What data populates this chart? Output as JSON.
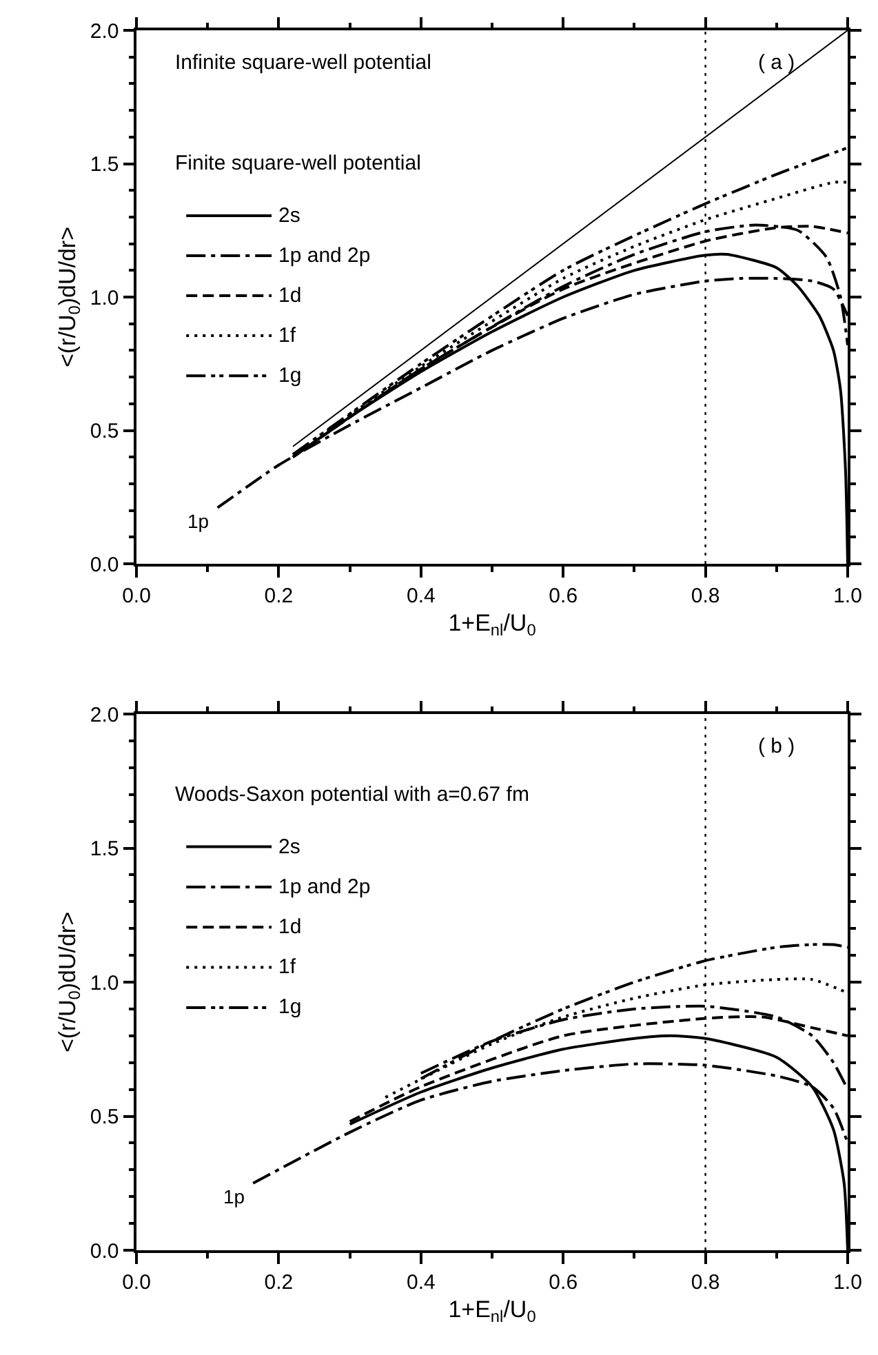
{
  "chart_data": [
    {
      "type": "line",
      "xlabel": "1+E$_{nl}$/U$_{0}$",
      "ylabel": "<(r/U$_{0}$)dU/dr>",
      "legend_title": "Finite square-well potential",
      "legend": "top left",
      "grid": false,
      "marker": "none",
      "xlim": [
        0,
        1
      ],
      "ylim": [
        0,
        2
      ],
      "xticks": [
        {
          "value": 0,
          "label": "0.0"
        },
        {
          "value": 0.2,
          "label": "0.2"
        },
        {
          "value": 0.4,
          "label": "0.4"
        },
        {
          "value": 0.6,
          "label": "0.6"
        },
        {
          "value": 0.8,
          "label": "0.8"
        },
        {
          "value": 1,
          "label": "1.0"
        }
      ],
      "yticks": [
        {
          "value": 0,
          "label": "0.0"
        },
        {
          "value": 0.5,
          "label": "0.5"
        },
        {
          "value": 1,
          "label": "1.0"
        },
        {
          "value": 1.5,
          "label": "1.5"
        },
        {
          "value": 2,
          "label": "2.0"
        }
      ],
      "ref_lines": [
        {
          "axis": "x",
          "value": 0.8,
          "line_style": "dotted",
          "color": "#000000"
        }
      ],
      "annotations": [
        "Infinite square-well potential",
        "( a )",
        {
          "text": "1p",
          "x": 0.114,
          "y": 0.21
        }
      ],
      "series": [
        {
          "color": "#000000",
          "line_style": "solid",
          "x": [
            0.22,
            1.0
          ],
          "values": [
            0.44,
            2.0
          ]
        },
        {
          "name": "2s",
          "color": "#000000",
          "line_style": "solid",
          "x": [
            0.22,
            0.3,
            0.4,
            0.5,
            0.6,
            0.7,
            0.8,
            0.83,
            0.9,
            0.93,
            0.96,
            0.98,
            0.99,
            0.997,
            1.0
          ],
          "values": [
            0.4,
            0.55,
            0.72,
            0.87,
            1.0,
            1.1,
            1.157,
            1.16,
            1.11,
            1.04,
            0.93,
            0.8,
            0.65,
            0.35,
            0.0
          ]
        },
        {
          "name": "1p and 2p",
          "color": "#000000",
          "line_style": "dashdot",
          "x": [
            0.114,
            0.2,
            0.3,
            0.4,
            0.5,
            0.6,
            0.7,
            0.8,
            0.85,
            0.9,
            0.95,
            0.98,
            1.0
          ],
          "values": [
            0.21,
            0.37,
            0.52,
            0.66,
            0.8,
            0.92,
            1.01,
            1.06,
            1.07,
            1.07,
            1.06,
            1.03,
            0.93
          ]
        },
        {
          "color": "#000000",
          "line_style": "dashdot",
          "x": [
            0.22,
            0.3,
            0.4,
            0.6,
            0.7,
            0.8,
            0.87,
            0.93,
            0.97,
            0.99,
            1.0
          ],
          "values": [
            0.4,
            0.55,
            0.73,
            1.04,
            1.16,
            1.245,
            1.27,
            1.25,
            1.15,
            1.0,
            0.82
          ]
        },
        {
          "name": "1d",
          "color": "#000000",
          "line_style": "dashed",
          "x": [
            0.22,
            0.4,
            0.6,
            0.8,
            0.9,
            0.95,
            1.0
          ],
          "values": [
            0.4,
            0.73,
            1.03,
            1.21,
            1.26,
            1.265,
            1.24
          ]
        },
        {
          "name": "1f",
          "color": "#000000",
          "line_style": "dotted",
          "x": [
            0.22,
            0.4,
            0.6,
            0.7,
            0.8,
            0.9,
            0.98,
            1.0
          ],
          "values": [
            0.41,
            0.74,
            1.07,
            1.19,
            1.29,
            1.37,
            1.43,
            1.43
          ]
        },
        {
          "name": "1g",
          "color": "#000000",
          "line_style": "dashdotdot",
          "x": [
            0.22,
            0.4,
            0.6,
            0.7,
            0.8,
            0.9,
            1.0
          ],
          "values": [
            0.41,
            0.75,
            1.1,
            1.23,
            1.35,
            1.46,
            1.56
          ]
        }
      ]
    },
    {
      "type": "line",
      "xlabel": "1+E$_{nl}$/U$_{0}$",
      "ylabel": "<(r/U$_{0}$)dU/dr>",
      "legend_title": "Woods-Saxon potential with a=0.67 fm",
      "legend": "top left",
      "grid": false,
      "marker": "none",
      "xlim": [
        0,
        1
      ],
      "ylim": [
        0,
        2
      ],
      "xticks": [
        {
          "value": 0,
          "label": "0.0"
        },
        {
          "value": 0.2,
          "label": "0.2"
        },
        {
          "value": 0.4,
          "label": "0.4"
        },
        {
          "value": 0.6,
          "label": "0.6"
        },
        {
          "value": 0.8,
          "label": "0.8"
        },
        {
          "value": 1,
          "label": "1.0"
        }
      ],
      "yticks": [
        {
          "value": 0,
          "label": "0.0"
        },
        {
          "value": 0.5,
          "label": "0.5"
        },
        {
          "value": 1,
          "label": "1.0"
        },
        {
          "value": 1.5,
          "label": "1.5"
        },
        {
          "value": 2,
          "label": "2.0"
        }
      ],
      "ref_lines": [
        {
          "axis": "x",
          "value": 0.8,
          "line_style": "dotted",
          "color": "#000000"
        }
      ],
      "annotations": [
        "( b )",
        {
          "text": "1p",
          "x": 0.164,
          "y": 0.25
        }
      ],
      "series": [
        {
          "name": "2s",
          "color": "#000000",
          "line_style": "solid",
          "x": [
            0.3,
            0.4,
            0.5,
            0.6,
            0.7,
            0.75,
            0.8,
            0.9,
            0.95,
            0.98,
            0.995,
            1.0
          ],
          "values": [
            0.47,
            0.59,
            0.68,
            0.75,
            0.79,
            0.8,
            0.79,
            0.72,
            0.61,
            0.45,
            0.25,
            0.0
          ]
        },
        {
          "name": "1p and 2p",
          "color": "#000000",
          "line_style": "dashdot",
          "x": [
            0.164,
            0.3,
            0.4,
            0.5,
            0.6,
            0.7,
            0.8,
            0.9,
            0.95,
            0.98,
            1.0
          ],
          "values": [
            0.25,
            0.44,
            0.56,
            0.63,
            0.67,
            0.695,
            0.69,
            0.65,
            0.61,
            0.53,
            0.4
          ]
        },
        {
          "color": "#000000",
          "line_style": "dashdot",
          "x": [
            0.4,
            0.5,
            0.6,
            0.7,
            0.8,
            0.9,
            0.95,
            0.98,
            1.0
          ],
          "values": [
            0.66,
            0.78,
            0.86,
            0.9,
            0.91,
            0.87,
            0.8,
            0.7,
            0.6
          ]
        },
        {
          "name": "1d",
          "color": "#000000",
          "line_style": "dashed",
          "x": [
            0.3,
            0.4,
            0.6,
            0.8,
            0.88,
            0.95,
            1.0
          ],
          "values": [
            0.48,
            0.61,
            0.8,
            0.865,
            0.87,
            0.83,
            0.8
          ]
        },
        {
          "name": "1f",
          "color": "#000000",
          "line_style": "dotted",
          "x": [
            0.35,
            0.5,
            0.6,
            0.7,
            0.8,
            0.9,
            0.95,
            1.0
          ],
          "values": [
            0.57,
            0.77,
            0.87,
            0.94,
            0.99,
            1.01,
            1.01,
            0.96
          ]
        },
        {
          "name": "1g",
          "color": "#000000",
          "line_style": "dashdotdot",
          "x": [
            0.4,
            0.5,
            0.6,
            0.7,
            0.8,
            0.9,
            0.95,
            0.98,
            1.0
          ],
          "values": [
            0.64,
            0.78,
            0.9,
            1.0,
            1.08,
            1.13,
            1.14,
            1.14,
            1.13
          ]
        }
      ]
    }
  ]
}
